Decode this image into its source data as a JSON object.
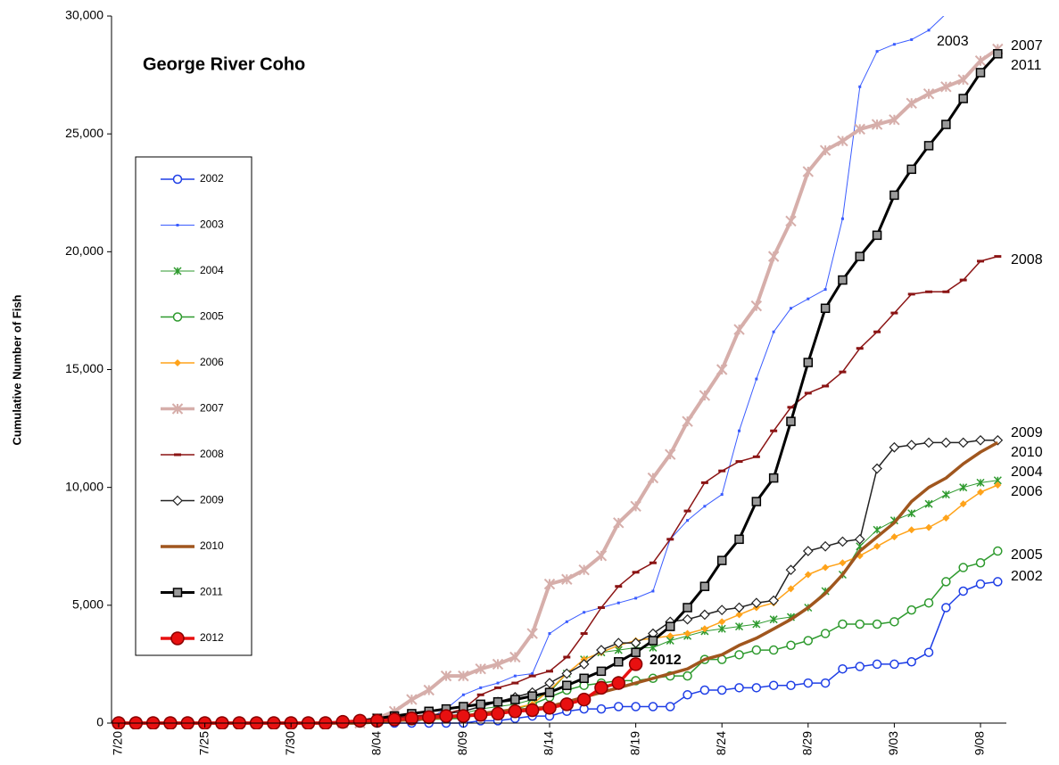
{
  "chart_data": {
    "type": "line",
    "title": "George River Coho",
    "y_label": "Cumulative Number of Fish",
    "categories": [
      "7/20",
      null,
      null,
      null,
      null,
      "7/25",
      null,
      null,
      null,
      null,
      "7/30",
      null,
      null,
      null,
      null,
      "8/04",
      null,
      null,
      null,
      null,
      "8/09",
      null,
      null,
      null,
      null,
      "8/14",
      null,
      null,
      null,
      null,
      "8/19",
      null,
      null,
      null,
      null,
      "8/24",
      null,
      null,
      null,
      null,
      "8/29",
      null,
      null,
      null,
      null,
      "9/03",
      null,
      null,
      null,
      null,
      "9/08",
      null
    ],
    "ylim": [
      0,
      30000
    ],
    "yticks": [
      0,
      {
        "value": 5000,
        "label": "5,000"
      },
      {
        "value": 10000,
        "label": "10,000"
      },
      {
        "value": 15000,
        "label": "15,000"
      },
      {
        "value": 20000,
        "label": "20,000"
      },
      {
        "value": 25000,
        "label": "25,000"
      },
      {
        "value": 30000,
        "label": "30,000"
      }
    ],
    "series": [
      {
        "name": "2002",
        "color": "#1f3fe6",
        "marker": "circle-open",
        "width": 1.5,
        "values": [
          0,
          0,
          0,
          0,
          0,
          0,
          0,
          0,
          0,
          0,
          0,
          0,
          0,
          0,
          0,
          0,
          0,
          0,
          0,
          0,
          0,
          100,
          100,
          200,
          300,
          300,
          500,
          600,
          600,
          700,
          700,
          700,
          700,
          1200,
          1400,
          1400,
          1500,
          1500,
          1600,
          1600,
          1700,
          1700,
          2300,
          2400,
          2500,
          2500,
          2600,
          3000,
          4900,
          5600,
          5900,
          6000
        ]
      },
      {
        "name": "2003",
        "color": "#3a5cff",
        "marker": "dot",
        "width": 1,
        "values": [
          0,
          0,
          0,
          0,
          0,
          0,
          0,
          0,
          0,
          0,
          0,
          0,
          0,
          0,
          0,
          0,
          0,
          0,
          200,
          600,
          1200,
          1500,
          1700,
          2000,
          2100,
          3800,
          4300,
          4700,
          4900,
          5100,
          5300,
          5600,
          7800,
          8600,
          9200,
          9700,
          12400,
          14600,
          16600,
          17600,
          18000,
          18400,
          21400,
          27000,
          28500,
          28800,
          29000,
          29400,
          30100,
          30900,
          null,
          null
        ]
      },
      {
        "name": "2004",
        "color": "#2e9a2e",
        "marker": "star",
        "width": 1,
        "values": [
          0,
          0,
          0,
          0,
          0,
          0,
          0,
          0,
          0,
          0,
          0,
          0,
          0,
          0,
          0,
          100,
          150,
          200,
          250,
          300,
          400,
          600,
          700,
          800,
          1000,
          1300,
          2100,
          2700,
          3000,
          3100,
          3200,
          3200,
          3500,
          3700,
          3900,
          4000,
          4100,
          4200,
          4400,
          4500,
          4900,
          5600,
          6300,
          7500,
          8200,
          8600,
          8900,
          9300,
          9700,
          10000,
          10200,
          10300
        ]
      },
      {
        "name": "2005",
        "color": "#2e9a2e",
        "marker": "circle-open",
        "width": 1.5,
        "values": [
          0,
          0,
          0,
          0,
          0,
          0,
          0,
          0,
          0,
          0,
          0,
          0,
          0,
          0,
          0,
          50,
          80,
          100,
          150,
          180,
          200,
          400,
          500,
          600,
          800,
          1100,
          1400,
          1600,
          1700,
          1800,
          1800,
          1900,
          2000,
          2000,
          2700,
          2700,
          2900,
          3100,
          3100,
          3300,
          3500,
          3800,
          4200,
          4200,
          4200,
          4300,
          4800,
          5100,
          6000,
          6600,
          6800,
          7300
        ]
      },
      {
        "name": "2006",
        "color": "#ffa31a",
        "marker": "diamond",
        "width": 1.5,
        "values": [
          0,
          0,
          0,
          0,
          0,
          0,
          0,
          0,
          0,
          0,
          0,
          0,
          0,
          0,
          0,
          50,
          80,
          100,
          150,
          200,
          300,
          400,
          500,
          650,
          800,
          1400,
          2100,
          2700,
          3000,
          3300,
          3500,
          3600,
          3700,
          3800,
          4000,
          4300,
          4600,
          4900,
          5100,
          5700,
          6300,
          6600,
          6800,
          7100,
          7500,
          7900,
          8200,
          8300,
          8700,
          9300,
          9800,
          10100
        ]
      },
      {
        "name": "2007",
        "color": "#d6aeaa",
        "marker": "star-big",
        "width": 4,
        "values": [
          0,
          0,
          0,
          0,
          0,
          0,
          0,
          0,
          0,
          0,
          0,
          0,
          0,
          0,
          0,
          200,
          500,
          1000,
          1400,
          2000,
          2000,
          2300,
          2500,
          2800,
          3800,
          5900,
          6100,
          6500,
          7100,
          8500,
          9200,
          10400,
          11400,
          12800,
          13900,
          15000,
          16700,
          17700,
          19800,
          21300,
          23400,
          24300,
          24700,
          25200,
          25400,
          25600,
          26300,
          26700,
          27000,
          27300,
          28100,
          28600
        ]
      },
      {
        "name": "2008",
        "color": "#8b1414",
        "marker": "dash",
        "width": 1.5,
        "values": [
          0,
          0,
          0,
          0,
          0,
          0,
          0,
          0,
          0,
          0,
          0,
          0,
          0,
          50,
          100,
          200,
          250,
          300,
          350,
          400,
          600,
          1200,
          1500,
          1700,
          2000,
          2200,
          2800,
          3800,
          4900,
          5800,
          6400,
          6800,
          7800,
          9000,
          10200,
          10700,
          11100,
          11300,
          12400,
          13400,
          14000,
          14300,
          14900,
          15900,
          16600,
          17400,
          18200,
          18300,
          18300,
          18800,
          19600,
          19800
        ]
      },
      {
        "name": "2009",
        "color": "#222222",
        "marker": "diamond-open",
        "width": 1.5,
        "values": [
          0,
          0,
          0,
          0,
          0,
          0,
          0,
          0,
          0,
          0,
          0,
          0,
          0,
          50,
          100,
          150,
          200,
          250,
          300,
          400,
          500,
          700,
          900,
          1100,
          1300,
          1700,
          2100,
          2500,
          3100,
          3400,
          3400,
          3800,
          4300,
          4400,
          4600,
          4800,
          4900,
          5100,
          5200,
          6500,
          7300,
          7500,
          7700,
          7800,
          10800,
          11700,
          11800,
          11900,
          11900,
          11900,
          12000,
          12000
        ]
      },
      {
        "name": "2010",
        "color": "#a0561e",
        "marker": "none",
        "width": 3.5,
        "values": [
          0,
          0,
          0,
          0,
          0,
          0,
          0,
          0,
          0,
          0,
          0,
          0,
          0,
          0,
          0,
          50,
          100,
          150,
          200,
          250,
          300,
          400,
          500,
          550,
          600,
          700,
          900,
          1100,
          1300,
          1500,
          1700,
          1900,
          2100,
          2300,
          2700,
          2900,
          3300,
          3600,
          4000,
          4400,
          4900,
          5500,
          6300,
          7300,
          7900,
          8500,
          9400,
          10000,
          10400,
          11000,
          11500,
          11900
        ]
      },
      {
        "name": "2011",
        "color": "#000000",
        "marker": "square",
        "width": 3,
        "values": [
          0,
          0,
          0,
          0,
          0,
          0,
          0,
          0,
          0,
          0,
          0,
          0,
          0,
          50,
          100,
          200,
          300,
          400,
          500,
          600,
          700,
          800,
          900,
          1000,
          1150,
          1300,
          1600,
          1900,
          2200,
          2600,
          3000,
          3500,
          4100,
          4900,
          5800,
          6900,
          7800,
          9400,
          10400,
          12800,
          15300,
          17600,
          18800,
          19800,
          20700,
          22400,
          23500,
          24500,
          25400,
          26500,
          27600,
          28400
        ]
      },
      {
        "name": "2012",
        "color": "#e81010",
        "marker": "circle-big",
        "width": 3.5,
        "values": [
          0,
          0,
          0,
          0,
          0,
          0,
          0,
          0,
          0,
          0,
          0,
          0,
          0,
          50,
          100,
          100,
          150,
          200,
          250,
          300,
          300,
          350,
          400,
          500,
          550,
          650,
          800,
          1000,
          1500,
          1700,
          2500,
          null,
          null,
          null,
          null,
          null,
          null,
          null,
          null,
          null,
          null,
          null,
          null,
          null,
          null,
          null,
          null,
          null,
          null,
          null,
          null,
          null
        ]
      }
    ]
  }
}
